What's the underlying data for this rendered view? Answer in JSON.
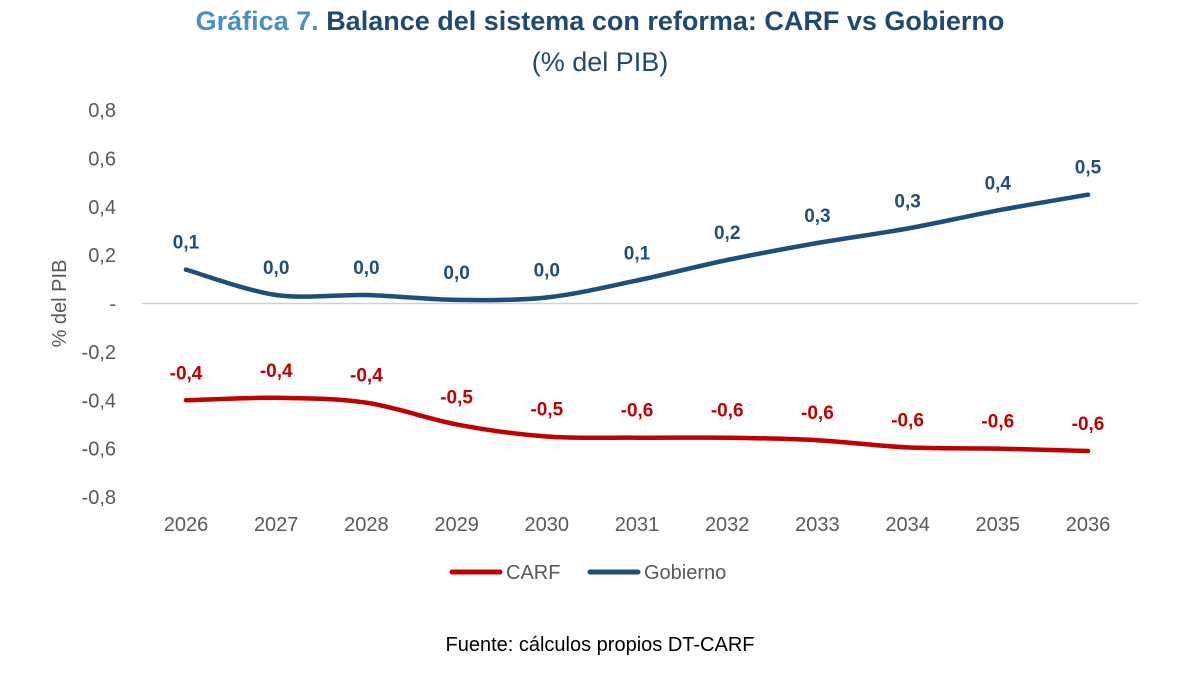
{
  "chart_data": {
    "type": "line",
    "title_prefix": "Gráfica 7.",
    "title": "Balance del sistema con reforma: CARF vs Gobierno",
    "subtitle": "(% del PIB)",
    "xlabel": "",
    "ylabel": "% del PIB",
    "ylim": [
      -0.8,
      0.8
    ],
    "y_ticks": [
      "0,8",
      "0,6",
      "0,4",
      "0,2",
      "-",
      "-0,2",
      "-0,4",
      "-0,6",
      "-0,8"
    ],
    "categories": [
      "2026",
      "2027",
      "2028",
      "2029",
      "2030",
      "2031",
      "2032",
      "2033",
      "2034",
      "2035",
      "2036"
    ],
    "series": [
      {
        "name": "CARF",
        "color": "#c00000",
        "values": [
          -0.4,
          -0.39,
          -0.41,
          -0.5,
          -0.55,
          -0.555,
          -0.555,
          -0.565,
          -0.595,
          -0.6,
          -0.61
        ],
        "labels": [
          "-0,4",
          "-0,4",
          "-0,4",
          "-0,5",
          "-0,5",
          "-0,6",
          "-0,6",
          "-0,6",
          "-0,6",
          "-0,6",
          "-0,6"
        ]
      },
      {
        "name": "Gobierno",
        "color": "#1f4e79",
        "values": [
          0.14,
          0.035,
          0.035,
          0.015,
          0.025,
          0.095,
          0.18,
          0.25,
          0.31,
          0.385,
          0.45
        ],
        "labels": [
          "0,1",
          "0,0",
          "0,0",
          "0,0",
          "0,0",
          "0,1",
          "0,2",
          "0,3",
          "0,3",
          "0,4",
          "0,5"
        ]
      }
    ],
    "legend": "bottom-center",
    "grid": false,
    "zero_line": true
  },
  "source": "Fuente: cálculos propios DT-CARF"
}
